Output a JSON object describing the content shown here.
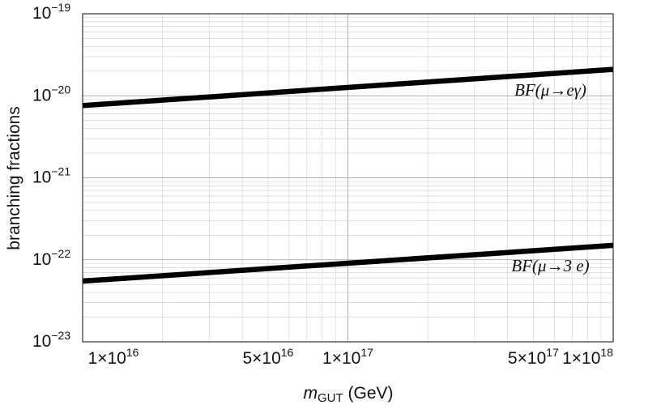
{
  "chart_data": {
    "type": "line",
    "x_scale": "log",
    "y_scale": "log",
    "xlim": [
      1e+16,
      1e+18
    ],
    "ylim": [
      1e-23,
      1e-19
    ],
    "grid": true,
    "xlabel_main": "m",
    "xlabel_sub": "GUT",
    "xlabel_unit": " (GeV)",
    "ylabel": "branching fractions",
    "x_ticks": [
      {
        "value": 1e+16,
        "mantissa": "1",
        "exp": "16"
      },
      {
        "value": 5e+16,
        "mantissa": "5",
        "exp": "16"
      },
      {
        "value": 1e+17,
        "mantissa": "1",
        "exp": "17"
      },
      {
        "value": 5e+17,
        "mantissa": "5",
        "exp": "17"
      },
      {
        "value": 1e+18,
        "mantissa": "1",
        "exp": "18"
      }
    ],
    "y_ticks": [
      {
        "value": 1e-19,
        "exp": "−19"
      },
      {
        "value": 1e-20,
        "exp": "−20"
      },
      {
        "value": 1e-21,
        "exp": "−21"
      },
      {
        "value": 1e-22,
        "exp": "−22"
      },
      {
        "value": 1e-23,
        "exp": "−23"
      }
    ],
    "series": [
      {
        "name": "BF(μ→eγ)",
        "label_text": "BF(μ→eγ)",
        "x": [
          1e+16,
          1e+18
        ],
        "y": [
          7.6e-21,
          2.1e-20
        ]
      },
      {
        "name": "BF(μ→3e)",
        "label_text": "BF(μ→3 e)",
        "x": [
          1e+16,
          1e+18
        ],
        "y": [
          5.5e-23,
          1.5e-22
        ]
      }
    ]
  }
}
